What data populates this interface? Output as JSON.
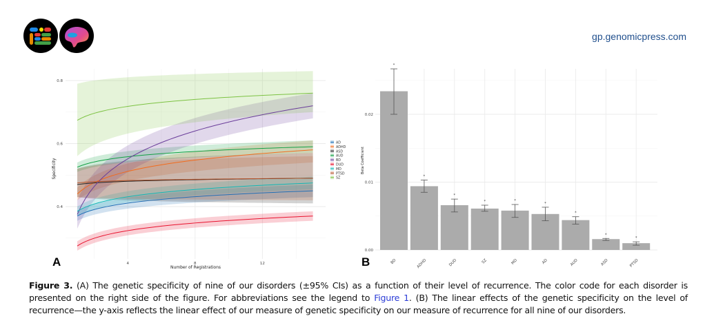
{
  "header": {
    "site": "gp.genomicpress.com"
  },
  "caption": {
    "label": "Figure 3.",
    "part1": " (A) The genetic specificity of nine of our disorders (±95% CIs) as a function of their level of recurrence. The color code for each disorder is presented on the right side of the figure. For abbreviations see the legend to ",
    "link": "Figure 1",
    "part2": ". (B) The linear effects of the genetic specificity on the level of recurrence—the y-axis reflects the linear effect of our measure of genetic specificity on our measure of recurrence for all nine of our disorders."
  },
  "chart_data": [
    {
      "type": "line",
      "panel": "A",
      "xlabel": "Number of Registrations",
      "ylabel": "Specificity",
      "xlim": [
        1,
        15
      ],
      "ylim": [
        0.25,
        0.85
      ],
      "xticks": [
        "4",
        "8",
        "12"
      ],
      "yticks": [
        "0.4",
        "0.6",
        "0.8"
      ],
      "grid": true,
      "legend_position": "right",
      "series": [
        {
          "name": "AD",
          "color": "#1f6fb5",
          "start": 0.37,
          "end": 0.45,
          "ci_start": [
            0.355,
            0.385
          ],
          "ci_end": [
            0.43,
            0.47
          ]
        },
        {
          "name": "ADHD",
          "color": "#f26b1d",
          "start": 0.44,
          "end": 0.58,
          "ci_start": [
            0.42,
            0.46
          ],
          "ci_end": [
            0.54,
            0.61
          ]
        },
        {
          "name": "ASD",
          "color": "#222222",
          "start": 0.47,
          "end": 0.49,
          "ci_start": [
            0.43,
            0.52
          ],
          "ci_end": [
            0.41,
            0.57
          ]
        },
        {
          "name": "AUD",
          "color": "#11a043",
          "start": 0.525,
          "end": 0.59,
          "ci_start": [
            0.51,
            0.54
          ],
          "ci_end": [
            0.57,
            0.61
          ]
        },
        {
          "name": "BD",
          "color": "#6a3d9a",
          "start": 0.375,
          "end": 0.72,
          "ci_start": [
            0.33,
            0.42
          ],
          "ci_end": [
            0.68,
            0.76
          ]
        },
        {
          "name": "DUD",
          "color": "#e8112d",
          "start": 0.275,
          "end": 0.37,
          "ci_start": [
            0.26,
            0.29
          ],
          "ci_end": [
            0.355,
            0.385
          ]
        },
        {
          "name": "MD",
          "color": "#10b5b5",
          "start": 0.385,
          "end": 0.475,
          "ci_start": [
            0.37,
            0.4
          ],
          "ci_end": [
            0.455,
            0.495
          ]
        },
        {
          "name": "PTSD",
          "color": "#b5532a",
          "start": 0.475,
          "end": 0.49,
          "ci_start": [
            0.43,
            0.52
          ],
          "ci_end": [
            0.42,
            0.56
          ]
        },
        {
          "name": "SZ",
          "color": "#7cc242",
          "start": 0.674,
          "end": 0.76,
          "ci_start": [
            0.56,
            0.79
          ],
          "ci_end": [
            0.7,
            0.83
          ]
        }
      ]
    },
    {
      "type": "bar",
      "panel": "B",
      "ylabel": "Beta Coefficient",
      "ylim": [
        0,
        0.027
      ],
      "yticks": [
        "0.00",
        "0.01",
        "0.02"
      ],
      "grid": true,
      "color": "#ababab",
      "significance_marker": "*",
      "categories": [
        "BD",
        "ADHD",
        "DUD",
        "SZ",
        "MD",
        "AD",
        "AUD",
        "ASD",
        "PTSD"
      ],
      "values": [
        0.0234,
        0.0094,
        0.0066,
        0.0061,
        0.0058,
        0.0053,
        0.0044,
        0.0016,
        0.001
      ],
      "ci_low": [
        0.02,
        0.0085,
        0.0056,
        0.0057,
        0.0048,
        0.0043,
        0.0038,
        0.0014,
        0.0007
      ],
      "ci_high": [
        0.0267,
        0.0103,
        0.0075,
        0.0066,
        0.0067,
        0.0063,
        0.0049,
        0.0017,
        0.0012
      ]
    }
  ]
}
